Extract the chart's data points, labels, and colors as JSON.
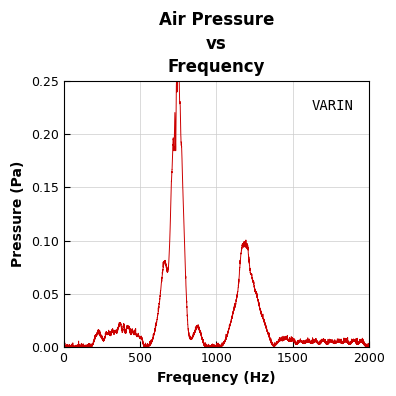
{
  "title": "Air Pressure\nvs\nFrequency",
  "xlabel": "Frequency (Hz)",
  "ylabel": "Pressure (Pa)",
  "legend_label": "VARIN",
  "xlim": [
    0,
    2000
  ],
  "ylim": [
    0,
    0.25
  ],
  "yticks": [
    0,
    0.05,
    0.1,
    0.15,
    0.2,
    0.25
  ],
  "xticks": [
    0,
    500,
    1000,
    1500,
    2000
  ],
  "line_color": "#cc0000",
  "background_color": "#ffffff",
  "grid_color": "#cccccc",
  "title_fontsize": 12,
  "label_fontsize": 10,
  "tick_fontsize": 9,
  "legend_fontsize": 10,
  "line_width": 0.7
}
